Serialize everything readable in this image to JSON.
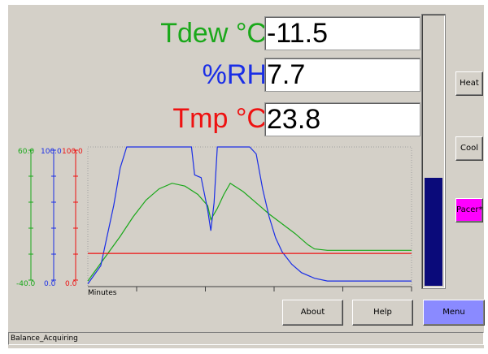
{
  "readings": {
    "dew": {
      "label": "Tdew °C",
      "value": "-11.5",
      "color": "#1aa81a"
    },
    "rh": {
      "label": "%RH",
      "value": "7.7",
      "color": "#1a2ee6"
    },
    "tmp": {
      "label": "Tmp °C",
      "value": "23.8",
      "color": "#ee1111"
    }
  },
  "buttons": {
    "heat": "Heat",
    "cool": "Cool",
    "pacer": "Pacer*",
    "about": "About",
    "help": "Help",
    "menu": "Menu"
  },
  "colors": {
    "pacer_bg": "#ff00ff",
    "menu_bg": "#8a8aff",
    "meter_fill": "#0a0a7a"
  },
  "meter": {
    "level": 0.4
  },
  "status": {
    "text": "Balance_Acquiring"
  },
  "chart_data": {
    "type": "line",
    "xlabel": "Minutes",
    "x_domain": [
      0,
      100
    ],
    "grid": false,
    "axes": [
      {
        "series": "Tdew",
        "color": "#1aa81a",
        "max_label": "60.0",
        "min_label": "-40.0",
        "range": [
          -40,
          60
        ]
      },
      {
        "series": "RH",
        "color": "#1a2ee6",
        "max_label": "100.0",
        "min_label": "0.0",
        "range": [
          0,
          100
        ]
      },
      {
        "series": "Tmp",
        "color": "#ee1111",
        "max_label": "100.0",
        "min_label": "0.0",
        "range": [
          0,
          100
        ]
      }
    ],
    "series": [
      {
        "color": "#1aa81a",
        "axis": 0,
        "x": [
          0,
          5,
          10,
          14,
          18,
          22,
          26,
          30,
          34,
          37,
          38,
          40,
          42,
          44,
          48,
          52,
          56,
          60,
          64,
          68,
          70,
          74,
          80,
          90,
          100
        ],
        "y": [
          -36,
          -20,
          -4,
          10,
          22,
          30,
          34,
          32,
          26,
          18,
          8,
          16,
          26,
          34,
          28,
          20,
          12,
          5,
          -2,
          -10,
          -13,
          -14,
          -14,
          -14,
          -14
        ]
      },
      {
        "color": "#1a2ee6",
        "axis": 1,
        "x": [
          0,
          4,
          8,
          10,
          12,
          13.5,
          20,
          26,
          32,
          33,
          35,
          37,
          38,
          39,
          40,
          41,
          50,
          52,
          54,
          56,
          58,
          60,
          63,
          66,
          70,
          74,
          80,
          90,
          100
        ],
        "y": [
          2,
          15,
          58,
          85,
          100,
          100,
          100,
          100,
          100,
          80,
          78,
          55,
          40,
          60,
          100,
          100,
          100,
          95,
          70,
          50,
          35,
          25,
          16,
          10,
          6,
          4,
          4,
          4,
          4
        ]
      },
      {
        "color": "#ee1111",
        "axis": 2,
        "x": [
          0,
          100
        ],
        "y": [
          23.8,
          23.8
        ]
      }
    ]
  }
}
